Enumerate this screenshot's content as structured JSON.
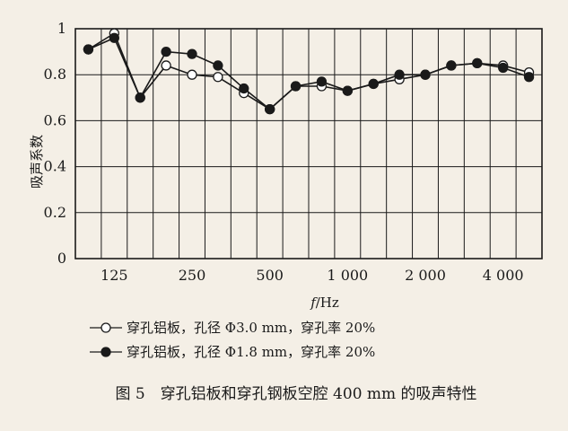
{
  "chart_data": {
    "type": "line",
    "xlabel_italic": "f",
    "xlabel_rest": "/Hz",
    "ylabel": "吸声系数",
    "ylim": [
      0,
      1
    ],
    "yticks": [
      "0",
      "0.2",
      "0.4",
      "0.6",
      "0.8",
      "1"
    ],
    "x": [
      100,
      125,
      160,
      200,
      250,
      315,
      400,
      500,
      630,
      800,
      1000,
      1250,
      1600,
      2000,
      2500,
      3150,
      4000,
      5000
    ],
    "xtick_labels": [
      "125",
      "250",
      "500",
      "1 000",
      "2 000",
      "4 000"
    ],
    "xtick_values": [
      125,
      250,
      500,
      1000,
      2000,
      4000
    ],
    "series": [
      {
        "name": "穿孔铝板，孔径 Φ3.0 mm，穿孔率 20%",
        "marker": "open",
        "values": [
          0.91,
          0.98,
          0.7,
          0.84,
          0.8,
          0.79,
          0.72,
          0.65,
          0.75,
          0.75,
          0.73,
          0.76,
          0.78,
          0.8,
          0.84,
          0.85,
          0.84,
          0.81
        ]
      },
      {
        "name": "穿孔铝板，孔径 Φ1.8 mm，穿孔率 20%",
        "marker": "filled",
        "values": [
          0.91,
          0.96,
          0.7,
          0.9,
          0.89,
          0.84,
          0.74,
          0.65,
          0.75,
          0.77,
          0.73,
          0.76,
          0.8,
          0.8,
          0.84,
          0.85,
          0.83,
          0.79
        ]
      }
    ],
    "caption": "图 5　穿孔铝板和穿孔钢板空腔 400 mm 的吸声特性"
  },
  "colors": {
    "background": "#f4efe6",
    "ink": "#1a1a1a",
    "grid": "#1a1a1a"
  }
}
